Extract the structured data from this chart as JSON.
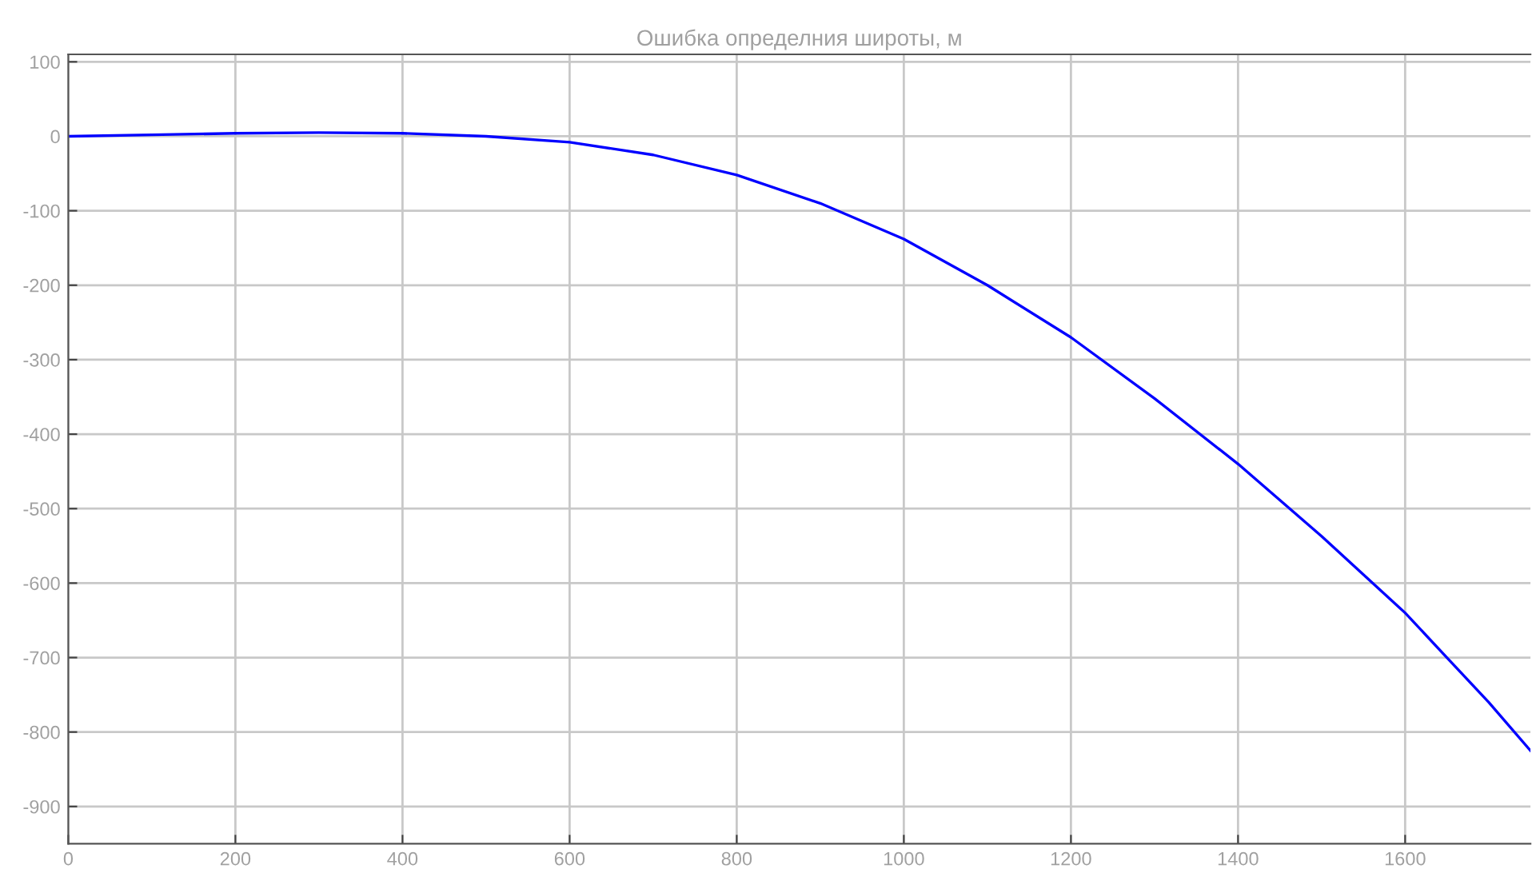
{
  "chart_data": {
    "type": "line",
    "title": "Ошибка определния широты, м",
    "x": [
      0,
      100,
      200,
      300,
      400,
      500,
      600,
      700,
      800,
      900,
      1000,
      1100,
      1200,
      1300,
      1400,
      1500,
      1600,
      1650,
      1700,
      1750
    ],
    "series": [
      {
        "color": "#0000ff",
        "values": [
          0,
          2,
          4,
          5,
          4,
          0,
          -8,
          -25,
          -52,
          -90,
          -138,
          -200,
          -270,
          -352,
          -440,
          -537,
          -640,
          -700,
          -760,
          -825
        ]
      }
    ],
    "xlim": [
      0,
      1750
    ],
    "xticks": [
      0,
      200,
      400,
      600,
      800,
      1000,
      1200,
      1400,
      1600
    ],
    "ylim": [
      -950,
      110
    ],
    "yticks": [
      -900,
      -800,
      -700,
      -600,
      -500,
      -400,
      -300,
      -200,
      -100,
      0,
      100
    ],
    "grid": true,
    "marker": "none",
    "line_style": "solid"
  }
}
